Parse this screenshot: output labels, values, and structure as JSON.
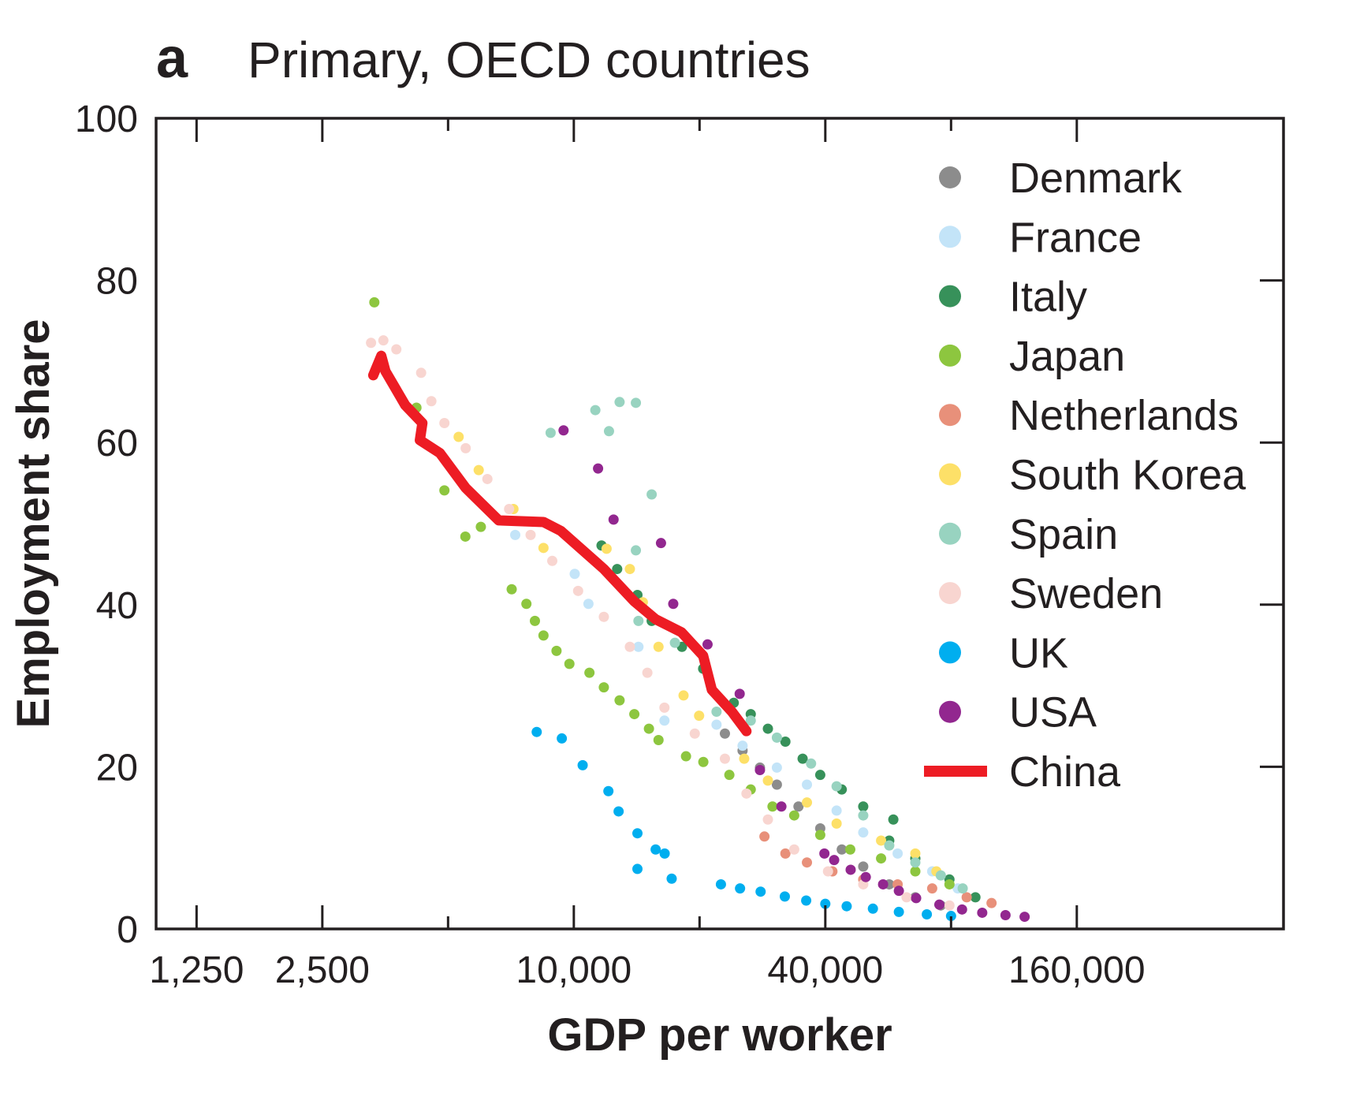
{
  "chart_data": {
    "type": "scatter",
    "panel_letter": "a",
    "title": "Primary, OECD countries",
    "xlabel": "GDP per worker",
    "ylabel": "Employment share",
    "x_scale": "log2",
    "xlim": [
      1000,
      500000
    ],
    "ylim": [
      0,
      100
    ],
    "x_ticks": [
      1250,
      2500,
      5000,
      10000,
      20000,
      40000,
      80000,
      160000
    ],
    "x_tick_labels": [
      "1,250",
      "2,500",
      "",
      "10,000",
      "",
      "40,000",
      "",
      "160,000"
    ],
    "y_ticks": [
      0,
      20,
      40,
      60,
      80,
      100
    ],
    "y_tick_labels": [
      "0",
      "20",
      "40",
      "60",
      "80",
      "100"
    ],
    "grid": false,
    "legend_position": "top-right",
    "series": [
      {
        "name": "Denmark",
        "color": "#8c8c8c",
        "kind": "points",
        "points": [
          [
            23000,
            24.1
          ],
          [
            25350,
            22.0
          ],
          [
            27900,
            19.9
          ],
          [
            30630,
            17.8
          ],
          [
            34500,
            15.1
          ],
          [
            38900,
            12.4
          ],
          [
            43800,
            9.8
          ],
          [
            49300,
            7.7
          ],
          [
            56900,
            5.5
          ],
          [
            65700,
            3.9
          ],
          [
            75600,
            2.9
          ]
        ]
      },
      {
        "name": "France",
        "color": "#c3e4f8",
        "kind": "points",
        "points": [
          [
            7240,
            48.6
          ],
          [
            10050,
            43.8
          ],
          [
            10840,
            40.1
          ],
          [
            14280,
            34.8
          ],
          [
            16480,
            25.7
          ],
          [
            21960,
            25.2
          ],
          [
            25350,
            22.6
          ],
          [
            30630,
            19.9
          ],
          [
            36150,
            17.8
          ],
          [
            42570,
            14.6
          ],
          [
            49300,
            11.9
          ],
          [
            59600,
            9.3
          ],
          [
            72100,
            7.1
          ],
          [
            83000,
            5.0
          ]
        ]
      },
      {
        "name": "Italy",
        "color": "#37915a",
        "kind": "points",
        "points": [
          [
            11650,
            47.3
          ],
          [
            12700,
            44.4
          ],
          [
            14200,
            41.2
          ],
          [
            15360,
            38.0
          ],
          [
            18150,
            34.8
          ],
          [
            20400,
            32.1
          ],
          [
            24150,
            27.9
          ],
          [
            26520,
            26.5
          ],
          [
            29150,
            24.7
          ],
          [
            32100,
            23.1
          ],
          [
            35300,
            21.0
          ],
          [
            38900,
            19.0
          ],
          [
            43800,
            17.2
          ],
          [
            49300,
            15.1
          ],
          [
            58200,
            13.5
          ],
          [
            56900,
            10.9
          ],
          [
            65700,
            8.7
          ],
          [
            79300,
            6.1
          ],
          [
            91500,
            3.9
          ]
        ]
      },
      {
        "name": "Japan",
        "color": "#8dc63f",
        "kind": "points",
        "points": [
          [
            3330,
            77.3
          ],
          [
            4200,
            64.3
          ],
          [
            4900,
            54.1
          ],
          [
            5500,
            48.4
          ],
          [
            5990,
            49.6
          ],
          [
            7100,
            41.9
          ],
          [
            7700,
            40.1
          ],
          [
            8070,
            38.0
          ],
          [
            8460,
            36.2
          ],
          [
            9090,
            34.3
          ],
          [
            9760,
            32.7
          ],
          [
            10900,
            31.6
          ],
          [
            11800,
            29.8
          ],
          [
            12870,
            28.2
          ],
          [
            13960,
            26.5
          ],
          [
            15130,
            24.7
          ],
          [
            15950,
            23.3
          ],
          [
            18560,
            21.3
          ],
          [
            20420,
            20.6
          ],
          [
            23570,
            19.0
          ],
          [
            26520,
            17.2
          ],
          [
            29900,
            15.1
          ],
          [
            33700,
            14.0
          ],
          [
            38900,
            11.6
          ],
          [
            45900,
            9.8
          ],
          [
            54400,
            8.7
          ],
          [
            65700,
            7.1
          ],
          [
            79300,
            5.5
          ]
        ]
      },
      {
        "name": "Netherlands",
        "color": "#e8907a",
        "kind": "points",
        "points": [
          [
            28600,
            11.4
          ],
          [
            32100,
            9.3
          ],
          [
            36150,
            8.2
          ],
          [
            41600,
            7.1
          ],
          [
            49300,
            6.1
          ],
          [
            59600,
            5.5
          ],
          [
            72100,
            5.0
          ],
          [
            87200,
            3.9
          ],
          [
            100000,
            3.2
          ]
        ]
      },
      {
        "name": "South Korea",
        "color": "#fde068",
        "kind": "points",
        "points": [
          [
            5300,
            60.7
          ],
          [
            5920,
            56.6
          ],
          [
            7170,
            51.8
          ],
          [
            8460,
            47.0
          ],
          [
            11980,
            46.9
          ],
          [
            13620,
            44.4
          ],
          [
            14630,
            40.3
          ],
          [
            15950,
            34.8
          ],
          [
            18310,
            28.8
          ],
          [
            19950,
            26.3
          ],
          [
            25580,
            21.0
          ],
          [
            29150,
            18.3
          ],
          [
            36150,
            15.6
          ],
          [
            42570,
            13.0
          ],
          [
            54400,
            10.9
          ],
          [
            65700,
            9.3
          ],
          [
            73800,
            7.1
          ]
        ]
      },
      {
        "name": "Spain",
        "color": "#98d3c0",
        "kind": "points",
        "points": [
          [
            8800,
            61.2
          ],
          [
            11260,
            64.0
          ],
          [
            12140,
            61.4
          ],
          [
            12870,
            65.0
          ],
          [
            14080,
            64.9
          ],
          [
            15360,
            53.6
          ],
          [
            14080,
            46.7
          ],
          [
            14280,
            38.0
          ],
          [
            17460,
            35.3
          ],
          [
            21960,
            26.8
          ],
          [
            26520,
            25.7
          ],
          [
            30630,
            23.6
          ],
          [
            36980,
            20.4
          ],
          [
            42570,
            17.6
          ],
          [
            49300,
            14.0
          ],
          [
            56900,
            10.3
          ],
          [
            65700,
            8.2
          ],
          [
            75600,
            6.6
          ],
          [
            85300,
            5.0
          ]
        ]
      },
      {
        "name": "Sweden",
        "color": "#f8d5d0",
        "kind": "points",
        "points": [
          [
            3270,
            72.3
          ],
          [
            3500,
            72.6
          ],
          [
            3760,
            71.5
          ],
          [
            4310,
            68.6
          ],
          [
            4560,
            65.1
          ],
          [
            4900,
            62.4
          ],
          [
            5510,
            59.3
          ],
          [
            6210,
            55.5
          ],
          [
            7000,
            51.8
          ],
          [
            7880,
            48.6
          ],
          [
            8880,
            45.4
          ],
          [
            10240,
            41.7
          ],
          [
            11800,
            38.5
          ],
          [
            13620,
            34.8
          ],
          [
            15000,
            31.6
          ],
          [
            16480,
            27.3
          ],
          [
            19480,
            24.1
          ],
          [
            23000,
            21.0
          ],
          [
            25900,
            16.7
          ],
          [
            29150,
            13.5
          ],
          [
            33700,
            9.8
          ],
          [
            40600,
            7.1
          ],
          [
            49300,
            5.5
          ],
          [
            62600,
            3.9
          ],
          [
            79300,
            2.9
          ]
        ]
      },
      {
        "name": "UK",
        "color": "#00aeef",
        "kind": "points",
        "points": [
          [
            8150,
            24.3
          ],
          [
            9360,
            23.5
          ],
          [
            10500,
            20.2
          ],
          [
            12100,
            17.0
          ],
          [
            12800,
            14.5
          ],
          [
            14200,
            11.8
          ],
          [
            15700,
            9.8
          ],
          [
            16500,
            9.3
          ],
          [
            14200,
            7.4
          ],
          [
            17150,
            6.2
          ],
          [
            22500,
            5.5
          ],
          [
            25000,
            5.0
          ],
          [
            28000,
            4.6
          ],
          [
            32000,
            4.0
          ],
          [
            36000,
            3.5
          ],
          [
            40000,
            3.1
          ],
          [
            45000,
            2.8
          ],
          [
            52000,
            2.5
          ],
          [
            60000,
            2.1
          ],
          [
            70000,
            1.8
          ],
          [
            80000,
            1.6
          ]
        ]
      },
      {
        "name": "USA",
        "color": "#92278f",
        "kind": "points",
        "points": [
          [
            9450,
            61.5
          ],
          [
            11430,
            56.8
          ],
          [
            12450,
            50.5
          ],
          [
            16170,
            47.6
          ],
          [
            17300,
            40.1
          ],
          [
            20900,
            35.1
          ],
          [
            24950,
            29.0
          ],
          [
            27900,
            19.6
          ],
          [
            31400,
            15.1
          ],
          [
            39800,
            9.3
          ],
          [
            42000,
            8.5
          ],
          [
            46000,
            7.3
          ],
          [
            50000,
            6.4
          ],
          [
            55000,
            5.5
          ],
          [
            60000,
            4.7
          ],
          [
            66000,
            3.8
          ],
          [
            75000,
            3.0
          ],
          [
            85000,
            2.4
          ],
          [
            95000,
            2.0
          ],
          [
            108000,
            1.7
          ],
          [
            120000,
            1.5
          ]
        ]
      },
      {
        "name": "China",
        "color": "#ed1c24",
        "kind": "line",
        "points": [
          [
            3310,
            68.3
          ],
          [
            3460,
            70.7
          ],
          [
            3540,
            68.8
          ],
          [
            3950,
            64.6
          ],
          [
            4340,
            62.4
          ],
          [
            4280,
            60.3
          ],
          [
            4780,
            58.7
          ],
          [
            5510,
            54.4
          ],
          [
            6610,
            50.4
          ],
          [
            8460,
            50.2
          ],
          [
            9310,
            49.1
          ],
          [
            11800,
            44.4
          ],
          [
            13960,
            40.4
          ],
          [
            15700,
            38.2
          ],
          [
            18100,
            36.6
          ],
          [
            20400,
            33.7
          ],
          [
            21400,
            29.5
          ],
          [
            23900,
            26.8
          ],
          [
            25900,
            24.4
          ]
        ]
      }
    ]
  }
}
